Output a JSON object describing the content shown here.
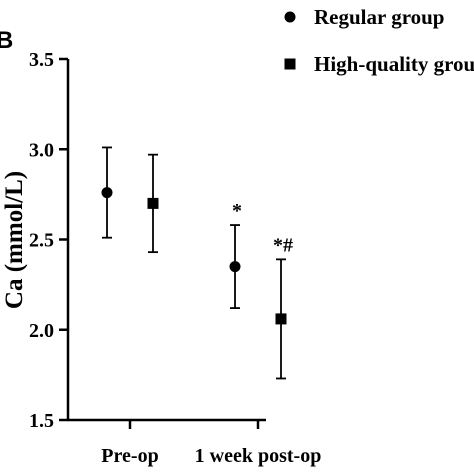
{
  "panel_label": "B",
  "chart_data": {
    "type": "scatter",
    "ylabel": "Ca (mmol/L)",
    "xlabel": "",
    "categories": [
      "Pre-op",
      "1 week post-op"
    ],
    "ylim": [
      1.5,
      3.5
    ],
    "yticks": [
      "1.5",
      "2.0",
      "2.5",
      "3.0",
      "3.5"
    ],
    "legend_position": "top-right",
    "grid": false,
    "series": [
      {
        "name": "Regular group",
        "marker": "circle",
        "means": [
          2.76,
          2.35
        ],
        "upper": [
          3.01,
          2.58
        ],
        "lower": [
          2.51,
          2.12
        ],
        "annotations": [
          "",
          "*"
        ]
      },
      {
        "name": "High-quality group",
        "marker": "square",
        "means": [
          2.7,
          2.06
        ],
        "upper": [
          2.97,
          2.39
        ],
        "lower": [
          2.43,
          1.73
        ],
        "annotations": [
          "",
          "*#"
        ]
      }
    ]
  }
}
